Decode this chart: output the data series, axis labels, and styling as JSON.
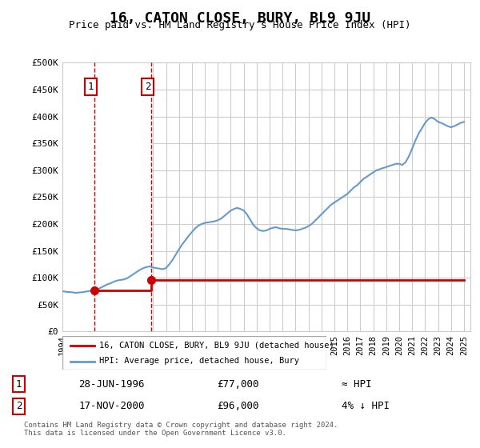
{
  "title": "16, CATON CLOSE, BURY, BL9 9JU",
  "subtitle": "Price paid vs. HM Land Registry's House Price Index (HPI)",
  "ylabel_ticks": [
    "£0",
    "£50K",
    "£100K",
    "£150K",
    "£200K",
    "£250K",
    "£300K",
    "£350K",
    "£400K",
    "£450K",
    "£500K"
  ],
  "ytick_values": [
    0,
    50000,
    100000,
    150000,
    200000,
    250000,
    300000,
    350000,
    400000,
    450000,
    500000
  ],
  "ylim": [
    0,
    500000
  ],
  "xlim_start": 1994.0,
  "xlim_end": 2025.5,
  "transactions": [
    {
      "label": "1",
      "date": 1996.49,
      "price": 77000,
      "date_str": "28-JUN-1996",
      "price_str": "£77,000",
      "relation": "≈ HPI"
    },
    {
      "label": "2",
      "date": 2000.88,
      "price": 96000,
      "date_str": "17-NOV-2000",
      "price_str": "£96,000",
      "relation": "4% ↓ HPI"
    }
  ],
  "hpi_data": {
    "years": [
      1994.0,
      1994.25,
      1994.5,
      1994.75,
      1995.0,
      1995.25,
      1995.5,
      1995.75,
      1996.0,
      1996.25,
      1996.5,
      1996.75,
      1997.0,
      1997.25,
      1997.5,
      1997.75,
      1998.0,
      1998.25,
      1998.5,
      1998.75,
      1999.0,
      1999.25,
      1999.5,
      1999.75,
      2000.0,
      2000.25,
      2000.5,
      2000.75,
      2001.0,
      2001.25,
      2001.5,
      2001.75,
      2002.0,
      2002.25,
      2002.5,
      2002.75,
      2003.0,
      2003.25,
      2003.5,
      2003.75,
      2004.0,
      2004.25,
      2004.5,
      2004.75,
      2005.0,
      2005.25,
      2005.5,
      2005.75,
      2006.0,
      2006.25,
      2006.5,
      2006.75,
      2007.0,
      2007.25,
      2007.5,
      2007.75,
      2008.0,
      2008.25,
      2008.5,
      2008.75,
      2009.0,
      2009.25,
      2009.5,
      2009.75,
      2010.0,
      2010.25,
      2010.5,
      2010.75,
      2011.0,
      2011.25,
      2011.5,
      2011.75,
      2012.0,
      2012.25,
      2012.5,
      2012.75,
      2013.0,
      2013.25,
      2013.5,
      2013.75,
      2014.0,
      2014.25,
      2014.5,
      2014.75,
      2015.0,
      2015.25,
      2015.5,
      2015.75,
      2016.0,
      2016.25,
      2016.5,
      2016.75,
      2017.0,
      2017.25,
      2017.5,
      2017.75,
      2018.0,
      2018.25,
      2018.5,
      2018.75,
      2019.0,
      2019.25,
      2019.5,
      2019.75,
      2020.0,
      2020.25,
      2020.5,
      2020.75,
      2021.0,
      2021.25,
      2021.5,
      2021.75,
      2022.0,
      2022.25,
      2022.5,
      2022.75,
      2023.0,
      2023.25,
      2023.5,
      2023.75,
      2024.0,
      2024.25,
      2024.5,
      2024.75,
      2025.0
    ],
    "values": [
      75000,
      74000,
      73500,
      73000,
      72000,
      72500,
      73000,
      74000,
      75000,
      76000,
      77500,
      79000,
      82000,
      85000,
      88000,
      90000,
      93000,
      95000,
      96000,
      97000,
      99000,
      103000,
      107000,
      111000,
      115000,
      118000,
      120000,
      121000,
      119000,
      118000,
      117000,
      116000,
      118000,
      125000,
      133000,
      143000,
      153000,
      162000,
      170000,
      178000,
      185000,
      192000,
      197000,
      200000,
      202000,
      203000,
      204000,
      205000,
      207000,
      210000,
      215000,
      220000,
      225000,
      228000,
      230000,
      228000,
      225000,
      218000,
      208000,
      198000,
      192000,
      188000,
      187000,
      188000,
      191000,
      193000,
      194000,
      192000,
      191000,
      191000,
      190000,
      189000,
      188000,
      189000,
      191000,
      193000,
      196000,
      200000,
      206000,
      212000,
      218000,
      224000,
      230000,
      236000,
      240000,
      244000,
      248000,
      252000,
      256000,
      262000,
      268000,
      272000,
      278000,
      284000,
      288000,
      292000,
      296000,
      300000,
      302000,
      304000,
      306000,
      308000,
      310000,
      312000,
      312000,
      310000,
      315000,
      326000,
      340000,
      355000,
      368000,
      378000,
      388000,
      395000,
      398000,
      395000,
      390000,
      388000,
      385000,
      382000,
      380000,
      382000,
      385000,
      388000,
      390000
    ]
  },
  "price_line_color": "#cc0000",
  "hpi_line_color": "#6699cc",
  "hatch_color": "#dddddd",
  "grid_color": "#cccccc",
  "background_color": "#ffffff",
  "legend_label_price": "16, CATON CLOSE, BURY, BL9 9JU (detached house)",
  "legend_label_hpi": "HPI: Average price, detached house, Bury",
  "footer": "Contains HM Land Registry data © Crown copyright and database right 2024.\nThis data is licensed under the Open Government Licence v3.0.",
  "xtick_years": [
    1994,
    1995,
    1996,
    1997,
    1998,
    1999,
    2000,
    2001,
    2002,
    2003,
    2004,
    2005,
    2006,
    2007,
    2008,
    2009,
    2010,
    2011,
    2012,
    2013,
    2014,
    2015,
    2016,
    2017,
    2018,
    2019,
    2020,
    2021,
    2022,
    2023,
    2024,
    2025
  ]
}
